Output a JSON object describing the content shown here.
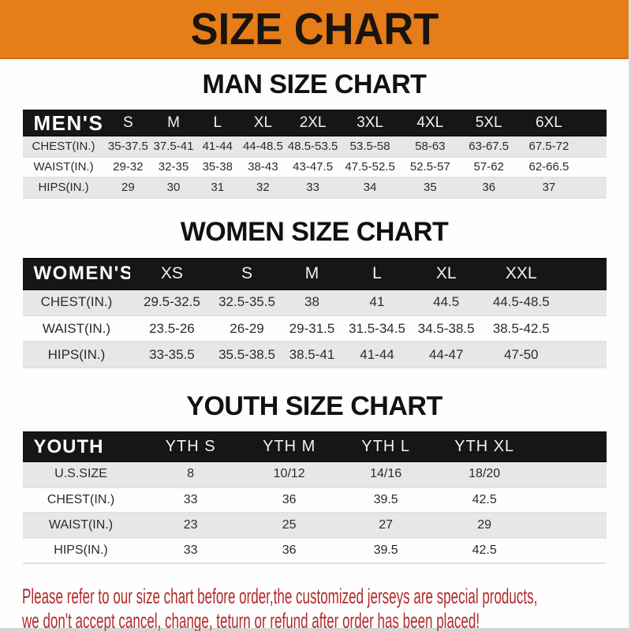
{
  "banner": {
    "title": "SIZE CHART"
  },
  "colors": {
    "banner_bg": "#e67d18",
    "header_bar_bg": "#161616",
    "row_alt_bg": "#e7e7e7",
    "row_plain_bg": "#fdfdfd",
    "footer_text": "#b22a2a"
  },
  "sections": [
    {
      "heading": "MAN SIZE CHART",
      "header_label": "MEN'S",
      "columns": [
        "S",
        "M",
        "L",
        "XL",
        "2XL",
        "3XL",
        "4XL",
        "5XL",
        "6XL"
      ],
      "rows": [
        {
          "label": "CHEST(IN.)",
          "values": [
            "35-37.5",
            "37.5-41",
            "41-44",
            "44-48.5",
            "48.5-53.5",
            "53.5-58",
            "58-63",
            "63-67.5",
            "67.5-72"
          ]
        },
        {
          "label": "WAIST(IN.)",
          "values": [
            "29-32",
            "32-35",
            "35-38",
            "38-43",
            "43-47.5",
            "47.5-52.5",
            "52.5-57",
            "57-62",
            "62-66.5"
          ]
        },
        {
          "label": "HIPS(IN.)",
          "values": [
            "29",
            "30",
            "31",
            "32",
            "33",
            "34",
            "35",
            "36",
            "37"
          ]
        }
      ]
    },
    {
      "heading": "WOMEN SIZE CHART",
      "header_label": "WOMEN'S",
      "columns": [
        "XS",
        "S",
        "M",
        "L",
        "XL",
        "XXL"
      ],
      "rows": [
        {
          "label": "CHEST(IN.)",
          "values": [
            "29.5-32.5",
            "32.5-35.5",
            "38",
            "41",
            "44.5",
            "44.5-48.5"
          ]
        },
        {
          "label": "WAIST(IN.)",
          "values": [
            "23.5-26",
            "26-29",
            "29-31.5",
            "31.5-34.5",
            "34.5-38.5",
            "38.5-42.5"
          ]
        },
        {
          "label": "HIPS(IN.)",
          "values": [
            "33-35.5",
            "35.5-38.5",
            "38.5-41",
            "41-44",
            "44-47",
            "47-50"
          ]
        }
      ]
    },
    {
      "heading": "YOUTH SIZE CHART",
      "header_label": "YOUTH",
      "columns": [
        "YTH S",
        "YTH M",
        "YTH L",
        "YTH XL"
      ],
      "rows": [
        {
          "label": "U.S.SIZE",
          "values": [
            "8",
            "10/12",
            "14/16",
            "18/20"
          ]
        },
        {
          "label": "CHEST(IN.)",
          "values": [
            "33",
            "36",
            "39.5",
            "42.5"
          ]
        },
        {
          "label": "WAIST(IN.)",
          "values": [
            "23",
            "25",
            "27",
            "29"
          ]
        },
        {
          "label": "HIPS(IN.)",
          "values": [
            "33",
            "36",
            "39.5",
            "42.5"
          ]
        }
      ]
    }
  ],
  "footer": {
    "line1": "Please refer to our size chart before order,the customized jerseys are special products,",
    "line2": "we don't accept cancel, change, teturn or refund after order has been placed!"
  }
}
